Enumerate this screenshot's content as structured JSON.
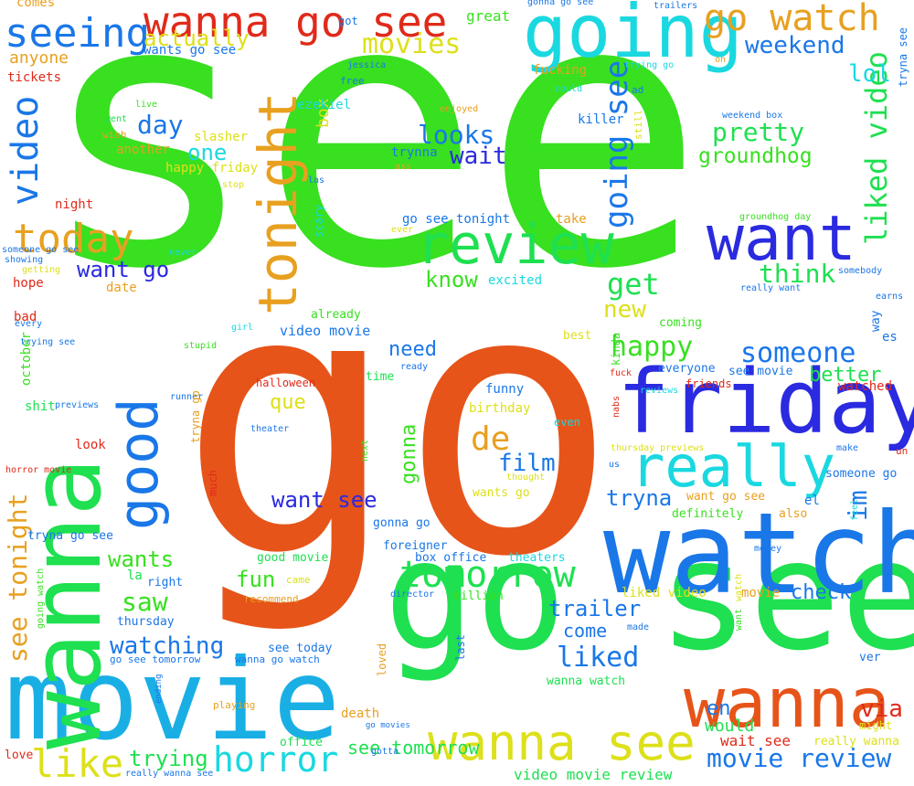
{
  "colors": {
    "green": "#38e020",
    "orange": "#e65419",
    "sky": "#1aafe4",
    "blue": "#1a77e8",
    "indigo": "#2a2ae0",
    "spring": "#1ee050",
    "yellow": "#dde01a",
    "amber": "#e8a020",
    "red": "#e02a1a",
    "cyan": "#1ad8e0"
  },
  "words": [
    {
      "text": "see",
      "color": "green"
    },
    {
      "text": "go",
      "color": "orange"
    },
    {
      "text": "movie",
      "color": "sky"
    },
    {
      "text": "go see",
      "color": "spring"
    },
    {
      "text": "watch",
      "color": "blue"
    },
    {
      "text": "wanna",
      "color": "spring"
    },
    {
      "text": "friday",
      "color": "indigo"
    },
    {
      "text": "going",
      "color": "cyan"
    },
    {
      "text": "want",
      "color": "indigo"
    },
    {
      "text": "review",
      "color": "spring"
    },
    {
      "text": "wanna go",
      "color": "orange"
    },
    {
      "text": "tonight",
      "color": "amber"
    },
    {
      "text": "good",
      "color": "blue"
    },
    {
      "text": "really",
      "color": "cyan"
    },
    {
      "text": "wanna see",
      "color": "yellow"
    },
    {
      "text": "wanna go see",
      "color": "red"
    },
    {
      "text": "go watch",
      "color": "amber"
    },
    {
      "text": "seeing",
      "color": "blue"
    },
    {
      "text": "horror",
      "color": "cyan"
    },
    {
      "text": "tomorrow",
      "color": "spring"
    },
    {
      "text": "movie review",
      "color": "blue"
    },
    {
      "text": "today",
      "color": "amber"
    },
    {
      "text": "video",
      "color": "blue"
    },
    {
      "text": "going see",
      "color": "blue"
    },
    {
      "text": "liked video",
      "color": "spring"
    },
    {
      "text": "see tonight",
      "color": "amber"
    },
    {
      "text": "like",
      "color": "yellow"
    },
    {
      "text": "movies",
      "color": "yellow"
    },
    {
      "text": "weekend",
      "color": "blue"
    },
    {
      "text": "actually",
      "color": "yellow"
    },
    {
      "text": "looks",
      "color": "blue"
    },
    {
      "text": "pretty",
      "color": "spring"
    },
    {
      "text": "wait",
      "color": "indigo"
    },
    {
      "text": "groundhog",
      "color": "green"
    },
    {
      "text": "day",
      "color": "blue"
    },
    {
      "text": "one",
      "color": "cyan"
    },
    {
      "text": "lol",
      "color": "cyan"
    },
    {
      "text": "box",
      "color": "yellow"
    },
    {
      "text": "want go",
      "color": "indigo"
    },
    {
      "text": "get",
      "color": "spring"
    },
    {
      "text": "think",
      "color": "spring"
    },
    {
      "text": "know",
      "color": "green"
    },
    {
      "text": "new",
      "color": "yellow"
    },
    {
      "text": "happy",
      "color": "green"
    },
    {
      "text": "someone",
      "color": "blue"
    },
    {
      "text": "need",
      "color": "blue"
    },
    {
      "text": "better",
      "color": "spring"
    },
    {
      "text": "que",
      "color": "yellow"
    },
    {
      "text": "gonna",
      "color": "green"
    },
    {
      "text": "de",
      "color": "amber"
    },
    {
      "text": "film",
      "color": "blue"
    },
    {
      "text": "im",
      "color": "blue"
    },
    {
      "text": "tryna",
      "color": "blue"
    },
    {
      "text": "want see",
      "color": "indigo"
    },
    {
      "text": "wants",
      "color": "green"
    },
    {
      "text": "fun",
      "color": "green"
    },
    {
      "text": "saw",
      "color": "green"
    },
    {
      "text": "trailer",
      "color": "blue"
    },
    {
      "text": "come",
      "color": "blue"
    },
    {
      "text": "liked",
      "color": "blue"
    },
    {
      "text": "watching",
      "color": "blue"
    },
    {
      "text": "check",
      "color": "blue"
    },
    {
      "text": "en",
      "color": "blue"
    },
    {
      "text": "via",
      "color": "red"
    },
    {
      "text": "trying",
      "color": "spring"
    },
    {
      "text": "see tomorrow",
      "color": "spring"
    },
    {
      "text": "video movie review",
      "color": "spring"
    },
    {
      "text": "wait see",
      "color": "red"
    },
    {
      "text": "would",
      "color": "spring"
    },
    {
      "text": "comes",
      "color": "amber"
    },
    {
      "text": "anyone",
      "color": "amber"
    },
    {
      "text": "tickets",
      "color": "red"
    },
    {
      "text": "great",
      "color": "green"
    },
    {
      "text": "got",
      "color": "blue"
    },
    {
      "text": "wants go see",
      "color": "blue"
    },
    {
      "text": "jessica",
      "color": "blue"
    },
    {
      "text": "free",
      "color": "blue"
    },
    {
      "text": "fucking",
      "color": "amber"
    },
    {
      "text": "gonna go see",
      "color": "blue"
    },
    {
      "text": "trailers",
      "color": "blue"
    },
    {
      "text": "trying go",
      "color": "cyan"
    },
    {
      "text": "oh",
      "color": "amber"
    },
    {
      "text": "tryna see",
      "color": "blue"
    },
    {
      "text": "go see tonight",
      "color": "blue"
    },
    {
      "text": "take",
      "color": "amber"
    },
    {
      "text": "happy friday",
      "color": "yellow"
    },
    {
      "text": "slasher",
      "color": "yellow"
    },
    {
      "text": "another",
      "color": "amber"
    },
    {
      "text": "wish",
      "color": "amber"
    },
    {
      "text": "went",
      "color": "spring"
    },
    {
      "text": "live",
      "color": "green"
    },
    {
      "text": "ezekiel",
      "color": "cyan"
    },
    {
      "text": "killer",
      "color": "blue"
    },
    {
      "text": "still",
      "color": "yellow"
    },
    {
      "text": "ad",
      "color": "blue"
    },
    {
      "text": "could",
      "color": "cyan"
    },
    {
      "text": "enjoyed",
      "color": "amber"
    },
    {
      "text": "trynna",
      "color": "blue"
    },
    {
      "text": "ass",
      "color": "amber"
    },
    {
      "text": "las",
      "color": "blue"
    },
    {
      "text": "stop",
      "color": "yellow"
    },
    {
      "text": "scary",
      "color": "cyan"
    },
    {
      "text": "ever",
      "color": "yellow"
    },
    {
      "text": "night",
      "color": "red"
    },
    {
      "text": "never",
      "color": "cyan"
    },
    {
      "text": "someone go see",
      "color": "blue"
    },
    {
      "text": "showing",
      "color": "blue"
    },
    {
      "text": "getting",
      "color": "yellow"
    },
    {
      "text": "hope",
      "color": "red"
    },
    {
      "text": "date",
      "color": "amber"
    },
    {
      "text": "excited",
      "color": "cyan"
    },
    {
      "text": "weekend box",
      "color": "blue"
    },
    {
      "text": "groundhog day",
      "color": "green"
    },
    {
      "text": "somebody",
      "color": "blue"
    },
    {
      "text": "really want",
      "color": "blue"
    },
    {
      "text": "earns",
      "color": "blue"
    },
    {
      "text": "bad",
      "color": "red"
    },
    {
      "text": "every",
      "color": "blue"
    },
    {
      "text": "already",
      "color": "green"
    },
    {
      "text": "video movie",
      "color": "blue"
    },
    {
      "text": "coming",
      "color": "green"
    },
    {
      "text": "best",
      "color": "yellow"
    },
    {
      "text": "kinda",
      "color": "green"
    },
    {
      "text": "girl",
      "color": "cyan"
    },
    {
      "text": "stupid",
      "color": "green"
    },
    {
      "text": "trying see",
      "color": "blue"
    },
    {
      "text": "october",
      "color": "green"
    },
    {
      "text": "ready",
      "color": "blue"
    },
    {
      "text": "everyone",
      "color": "blue"
    },
    {
      "text": "see movie",
      "color": "blue"
    },
    {
      "text": "way",
      "color": "blue"
    },
    {
      "text": "es",
      "color": "blue"
    },
    {
      "text": "halloween",
      "color": "red"
    },
    {
      "text": "time",
      "color": "spring"
    },
    {
      "text": "funny",
      "color": "blue"
    },
    {
      "text": "fuck",
      "color": "red"
    },
    {
      "text": "friends",
      "color": "red"
    },
    {
      "text": "reviews",
      "color": "cyan"
    },
    {
      "text": "watched",
      "color": "red"
    },
    {
      "text": "shit",
      "color": "spring"
    },
    {
      "text": "previews",
      "color": "blue"
    },
    {
      "text": "runner",
      "color": "blue"
    },
    {
      "text": "birthday",
      "color": "yellow"
    },
    {
      "text": "nabs",
      "color": "red"
    },
    {
      "text": "even",
      "color": "cyan"
    },
    {
      "text": "tryna go",
      "color": "amber"
    },
    {
      "text": "theater",
      "color": "blue"
    },
    {
      "text": "look",
      "color": "red"
    },
    {
      "text": "next",
      "color": "green"
    },
    {
      "text": "horror movie",
      "color": "red"
    },
    {
      "text": "thursday previews",
      "color": "yellow"
    },
    {
      "text": "make",
      "color": "blue"
    },
    {
      "text": "un",
      "color": "red"
    },
    {
      "text": "us",
      "color": "blue"
    },
    {
      "text": "thought",
      "color": "yellow"
    },
    {
      "text": "someone go",
      "color": "blue"
    },
    {
      "text": "much",
      "color": "red"
    },
    {
      "text": "wants go",
      "color": "yellow"
    },
    {
      "text": "want go see",
      "color": "amber"
    },
    {
      "text": "el",
      "color": "blue"
    },
    {
      "text": "feel",
      "color": "cyan"
    },
    {
      "text": "definitely",
      "color": "green"
    },
    {
      "text": "also",
      "color": "amber"
    },
    {
      "text": "tryna go see",
      "color": "blue"
    },
    {
      "text": "gonna go",
      "color": "blue"
    },
    {
      "text": "foreigner",
      "color": "blue"
    },
    {
      "text": "money",
      "color": "blue"
    },
    {
      "text": "good movie",
      "color": "spring"
    },
    {
      "text": "box office",
      "color": "blue"
    },
    {
      "text": "theaters",
      "color": "cyan"
    },
    {
      "text": "la",
      "color": "spring"
    },
    {
      "text": "right",
      "color": "blue"
    },
    {
      "text": "came",
      "color": "yellow"
    },
    {
      "text": "million",
      "color": "green"
    },
    {
      "text": "liked video",
      "color": "yellow"
    },
    {
      "text": "movie",
      "color": "amber"
    },
    {
      "text": "going watch",
      "color": "green"
    },
    {
      "text": "recommend",
      "color": "amber"
    },
    {
      "text": "director",
      "color": "blue"
    },
    {
      "text": "want",
      "color": "green"
    },
    {
      "text": "watch",
      "color": "yellow"
    },
    {
      "text": "made",
      "color": "blue"
    },
    {
      "text": "thursday",
      "color": "blue"
    },
    {
      "text": "see today",
      "color": "blue"
    },
    {
      "text": "go see tomorrow",
      "color": "blue"
    },
    {
      "text": "wanna go watch",
      "color": "blue"
    },
    {
      "text": "last",
      "color": "blue"
    },
    {
      "text": "loved",
      "color": "amber"
    },
    {
      "text": "ver",
      "color": "blue"
    },
    {
      "text": "wanna watch",
      "color": "spring"
    },
    {
      "text": "ending",
      "color": "blue"
    },
    {
      "text": "playing",
      "color": "amber"
    },
    {
      "text": "death",
      "color": "amber"
    },
    {
      "text": "go movies",
      "color": "blue"
    },
    {
      "text": "might",
      "color": "yellow"
    },
    {
      "text": "really wanna",
      "color": "yellow"
    },
    {
      "text": "office",
      "color": "spring"
    },
    {
      "text": "love",
      "color": "red"
    },
    {
      "text": "gotta",
      "color": "blue"
    },
    {
      "text": "really wanna see",
      "color": "blue"
    }
  ]
}
